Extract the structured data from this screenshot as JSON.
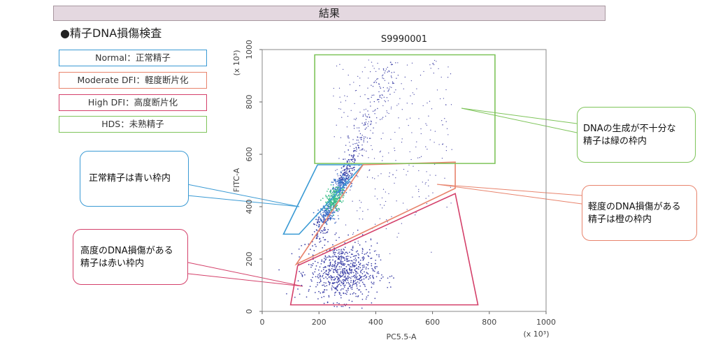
{
  "header": {
    "title": "結果"
  },
  "section": {
    "title": "●精子DNA損傷検査"
  },
  "legend": [
    {
      "label": "Normal：正常精子",
      "color": "#3a9ad4"
    },
    {
      "label": "Moderate DFI：軽度断片化",
      "color": "#e8836c"
    },
    {
      "label": "High DFI：高度断片化",
      "color": "#d4406a"
    },
    {
      "label": "HDS：未熟精子",
      "color": "#7ec45a"
    }
  ],
  "callouts": {
    "normal": "正常精子は青い枠内",
    "high": [
      "高度のDNA損傷がある",
      "精子は赤い枠内"
    ],
    "hds": [
      "DNAの生成が不十分な",
      "精子は緑の枠内"
    ],
    "moderate": [
      "軽度のDNA損傷がある",
      "精子は橙の枠内"
    ]
  },
  "chart_data": {
    "type": "scatter",
    "title": "S9990001",
    "xlabel": "PC5.5-A",
    "ylabel": "FITC-A",
    "x_multiplier": "(x 10³)",
    "y_multiplier": "(x 10³)",
    "xlim": [
      0,
      1000
    ],
    "ylim": [
      0,
      1000
    ],
    "xticks": [
      0,
      200,
      400,
      600,
      800,
      1000
    ],
    "yticks": [
      0,
      200,
      400,
      600,
      800,
      1000
    ],
    "gates": [
      {
        "name": "Normal",
        "color": "#3a9ad4",
        "polygon": [
          [
            75,
            295
          ],
          [
            130,
            295
          ],
          [
            355,
            560
          ],
          [
            195,
            560
          ]
        ]
      },
      {
        "name": "Moderate DFI",
        "color": "#e8836c",
        "polygon": [
          [
            120,
            180
          ],
          [
            355,
            560
          ],
          [
            680,
            570
          ],
          [
            680,
            470
          ]
        ]
      },
      {
        "name": "High DFI",
        "color": "#d4406a",
        "polygon": [
          [
            100,
            25
          ],
          [
            125,
            175
          ],
          [
            680,
            450
          ],
          [
            760,
            25
          ]
        ]
      },
      {
        "name": "HDS",
        "color": "#7ec45a",
        "polygon": [
          [
            185,
            565
          ],
          [
            820,
            565
          ],
          [
            820,
            980
          ],
          [
            185,
            980
          ]
        ]
      }
    ],
    "clusters": [
      {
        "center": [
          255,
          430
        ],
        "spread": "diagonal"
      },
      {
        "center": [
          285,
          150
        ],
        "spread": "wide"
      }
    ]
  }
}
